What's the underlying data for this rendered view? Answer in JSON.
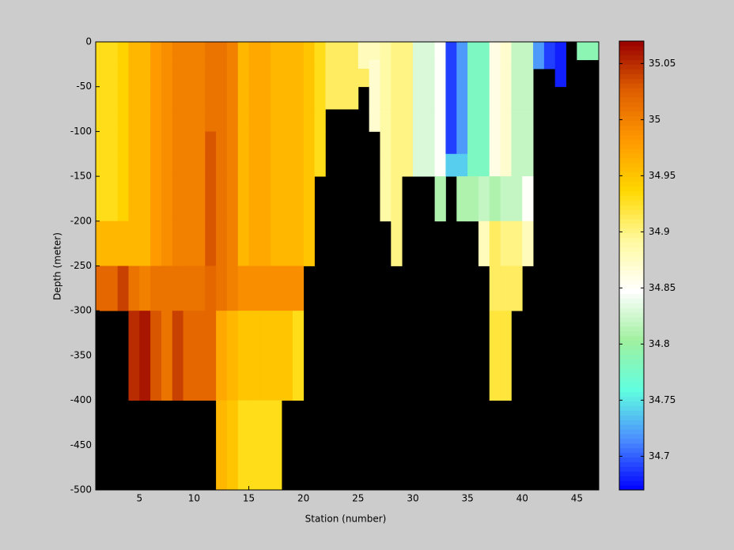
{
  "chart_data": {
    "type": "heatmap",
    "xlabel": "Station (number)",
    "ylabel": "Depth (meter)",
    "x": [
      1,
      2,
      3,
      4,
      5,
      6,
      7,
      8,
      9,
      10,
      11,
      12,
      13,
      14,
      15,
      16,
      17,
      18,
      19,
      20,
      21,
      22,
      23,
      24,
      25,
      26,
      27,
      28,
      29,
      30,
      31,
      32,
      33,
      34,
      35,
      36,
      37,
      38,
      39,
      40,
      41,
      42,
      43,
      44,
      45,
      46
    ],
    "y_edges": [
      0,
      -10,
      -20,
      -30,
      -50,
      -75,
      -100,
      -125,
      -150,
      -200,
      -250,
      -300,
      -400,
      -500
    ],
    "xlim": [
      1,
      47
    ],
    "ylim": [
      -500,
      0
    ],
    "xticks": [
      5,
      10,
      15,
      20,
      25,
      30,
      35,
      40,
      45
    ],
    "yticks": [
      0,
      -50,
      -100,
      -150,
      -200,
      -250,
      -300,
      -350,
      -400,
      -450,
      -500
    ],
    "clim": [
      34.67,
      35.07
    ],
    "cticks": [
      34.7,
      34.75,
      34.8,
      34.85,
      34.9,
      34.95,
      35,
      35.05
    ],
    "colormap": [
      "#0000ff",
      "#4a8cff",
      "#60ffe0",
      "#a0f0a0",
      "#ffffff",
      "#fffaa0",
      "#ffd800",
      "#ff9900",
      "#e06000",
      "#990000"
    ],
    "nan_color": "#000000",
    "values": [
      [
        34.93,
        34.93,
        34.93,
        34.93,
        34.93,
        34.93,
        34.93,
        34.93,
        34.93,
        34.96,
        35.02,
        null,
        null
      ],
      [
        34.93,
        34.93,
        34.93,
        34.93,
        34.93,
        34.93,
        34.93,
        34.93,
        34.93,
        34.96,
        35.02,
        null,
        null
      ],
      [
        34.94,
        34.94,
        34.94,
        34.94,
        34.94,
        34.94,
        34.94,
        34.94,
        34.94,
        34.96,
        35.04,
        null,
        null
      ],
      [
        34.96,
        34.96,
        34.96,
        34.96,
        34.96,
        34.96,
        34.96,
        34.96,
        34.96,
        34.96,
        35.01,
        35.05,
        null
      ],
      [
        34.96,
        34.96,
        34.96,
        34.96,
        34.96,
        34.96,
        34.96,
        34.96,
        34.96,
        34.96,
        35.0,
        35.06,
        null
      ],
      [
        34.98,
        34.98,
        34.98,
        34.98,
        34.98,
        34.98,
        34.98,
        34.98,
        34.98,
        34.98,
        35.01,
        35.03,
        null
      ],
      [
        34.99,
        34.99,
        34.99,
        34.99,
        34.99,
        34.99,
        34.99,
        34.99,
        34.99,
        34.99,
        35.01,
        35.01,
        null
      ],
      [
        35.0,
        35.0,
        35.0,
        35.0,
        35.0,
        35.0,
        35.0,
        35.0,
        35.0,
        35.0,
        35.01,
        35.04,
        null
      ],
      [
        35.0,
        35.0,
        35.0,
        35.0,
        35.0,
        35.0,
        35.0,
        35.0,
        35.0,
        35.0,
        35.01,
        35.02,
        null
      ],
      [
        35.0,
        35.0,
        35.0,
        35.0,
        35.0,
        35.0,
        35.0,
        35.0,
        35.0,
        35.0,
        35.01,
        35.02,
        null
      ],
      [
        35.01,
        35.01,
        35.01,
        35.01,
        35.01,
        35.01,
        35.03,
        35.03,
        35.03,
        35.03,
        35.02,
        35.02,
        null
      ],
      [
        35.01,
        35.01,
        35.01,
        35.01,
        35.01,
        35.01,
        35.01,
        35.01,
        35.01,
        35.01,
        35.01,
        34.97,
        34.96
      ],
      [
        35.0,
        35.0,
        35.0,
        35.0,
        35.0,
        35.0,
        35.0,
        35.0,
        35.0,
        35.0,
        35.0,
        34.96,
        34.95
      ],
      [
        34.96,
        34.96,
        34.96,
        34.96,
        34.96,
        34.96,
        34.96,
        34.96,
        34.96,
        34.96,
        34.99,
        34.95,
        34.93
      ],
      [
        34.97,
        34.97,
        34.97,
        34.97,
        34.97,
        34.97,
        34.97,
        34.97,
        34.97,
        34.97,
        34.99,
        34.95,
        34.93
      ],
      [
        34.97,
        34.97,
        34.97,
        34.97,
        34.97,
        34.97,
        34.97,
        34.97,
        34.97,
        34.97,
        34.99,
        34.95,
        34.93
      ],
      [
        34.96,
        34.96,
        34.96,
        34.96,
        34.96,
        34.96,
        34.96,
        34.96,
        34.96,
        34.96,
        34.99,
        34.95,
        34.93
      ],
      [
        34.96,
        34.96,
        34.96,
        34.96,
        34.96,
        34.96,
        34.96,
        34.96,
        34.96,
        34.96,
        34.99,
        34.95,
        null
      ],
      [
        34.96,
        34.96,
        34.96,
        34.96,
        34.96,
        34.96,
        34.96,
        34.96,
        34.96,
        34.96,
        34.99,
        34.93,
        null
      ],
      [
        34.95,
        34.95,
        34.95,
        34.95,
        34.95,
        34.95,
        34.95,
        34.95,
        34.95,
        34.95,
        null,
        null,
        null
      ],
      [
        34.93,
        34.93,
        34.93,
        34.93,
        34.93,
        34.93,
        34.93,
        34.93,
        null,
        null,
        null,
        null,
        null
      ],
      [
        34.91,
        34.91,
        34.91,
        34.91,
        34.91,
        null,
        null,
        null,
        null,
        null,
        null,
        null,
        null
      ],
      [
        34.91,
        34.91,
        34.91,
        34.91,
        34.91,
        null,
        null,
        null,
        null,
        null,
        null,
        null,
        null
      ],
      [
        34.91,
        34.91,
        34.91,
        34.91,
        34.91,
        null,
        null,
        null,
        null,
        null,
        null,
        null,
        null
      ],
      [
        34.88,
        34.88,
        34.88,
        34.91,
        null,
        null,
        null,
        null,
        null,
        null,
        null,
        null,
        null
      ],
      [
        34.88,
        34.88,
        34.87,
        34.87,
        34.87,
        34.87,
        null,
        null,
        null,
        null,
        null,
        null,
        null
      ],
      [
        34.89,
        34.89,
        34.89,
        34.89,
        34.89,
        34.89,
        34.89,
        34.89,
        34.89,
        null,
        null,
        null,
        null
      ],
      [
        34.9,
        34.9,
        34.9,
        34.9,
        34.9,
        34.9,
        34.9,
        34.9,
        34.9,
        34.9,
        null,
        null,
        null
      ],
      [
        34.9,
        34.9,
        34.9,
        34.9,
        34.9,
        34.9,
        34.9,
        34.9,
        null,
        null,
        null,
        null,
        null
      ],
      [
        34.83,
        34.83,
        34.83,
        34.83,
        34.83,
        34.83,
        34.83,
        34.83,
        null,
        null,
        null,
        null,
        null
      ],
      [
        34.83,
        34.83,
        34.83,
        34.83,
        34.83,
        34.83,
        34.83,
        34.83,
        null,
        null,
        null,
        null,
        null
      ],
      [
        34.85,
        34.85,
        34.85,
        34.85,
        34.85,
        34.85,
        34.85,
        34.85,
        34.81,
        null,
        null,
        null,
        null
      ],
      [
        34.69,
        34.69,
        34.69,
        34.69,
        34.69,
        34.69,
        34.69,
        34.74,
        null,
        null,
        null,
        null,
        null
      ],
      [
        34.72,
        34.72,
        34.72,
        34.72,
        34.72,
        34.72,
        34.72,
        34.74,
        34.81,
        null,
        null,
        null,
        null
      ],
      [
        34.78,
        34.78,
        34.78,
        34.78,
        34.78,
        34.78,
        34.78,
        34.78,
        34.81,
        null,
        null,
        null,
        null
      ],
      [
        34.78,
        34.78,
        34.78,
        34.78,
        34.78,
        34.78,
        34.78,
        34.78,
        34.82,
        34.88,
        null,
        null,
        null
      ],
      [
        34.86,
        34.86,
        34.86,
        34.86,
        34.86,
        34.86,
        34.86,
        34.86,
        34.81,
        34.91,
        34.91,
        34.92,
        null
      ],
      [
        34.87,
        34.87,
        34.87,
        34.87,
        34.87,
        34.87,
        34.87,
        34.87,
        34.82,
        34.9,
        34.91,
        34.92,
        null
      ],
      [
        34.82,
        34.82,
        34.82,
        34.82,
        34.82,
        34.82,
        34.82,
        34.82,
        34.82,
        34.9,
        34.91,
        null,
        null
      ],
      [
        34.82,
        34.82,
        34.82,
        34.82,
        34.82,
        34.82,
        34.82,
        34.82,
        34.85,
        34.88,
        null,
        null,
        null
      ],
      [
        34.72,
        34.72,
        34.72,
        null,
        null,
        null,
        null,
        null,
        null,
        null,
        null,
        null,
        null
      ],
      [
        34.69,
        34.69,
        34.69,
        null,
        null,
        null,
        null,
        null,
        null,
        null,
        null,
        null,
        null
      ],
      [
        34.68,
        34.68,
        34.68,
        34.68,
        null,
        null,
        null,
        null,
        null,
        null,
        null,
        null,
        null
      ],
      [
        null,
        null,
        null,
        null,
        null,
        null,
        null,
        null,
        null,
        null,
        null,
        null,
        null
      ],
      [
        34.79,
        34.79,
        null,
        null,
        null,
        null,
        null,
        null,
        null,
        null,
        null,
        null,
        null
      ],
      [
        34.79,
        34.79,
        null,
        null,
        null,
        null,
        null,
        null,
        null,
        null,
        null,
        null,
        null
      ]
    ]
  }
}
